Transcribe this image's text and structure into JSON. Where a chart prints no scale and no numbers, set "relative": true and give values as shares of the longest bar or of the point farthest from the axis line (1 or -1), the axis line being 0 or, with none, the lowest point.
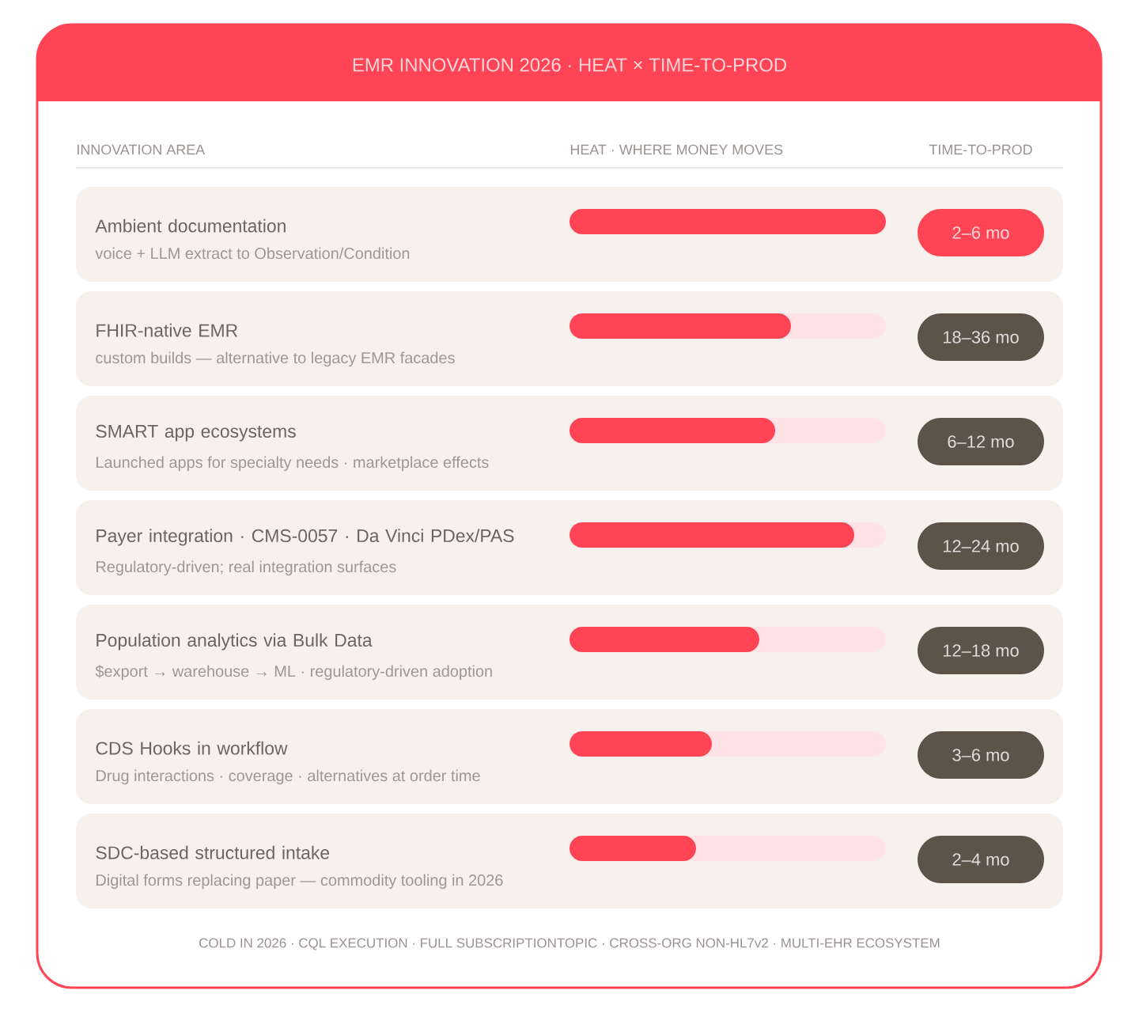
{
  "chart_data": {
    "type": "bar",
    "orientation": "horizontal",
    "relative": true,
    "color": "#ff4455",
    "title": "EMR INNOVATION 2026 · HEAT × TIME-TO-PROD",
    "ylabel": "INNOVATION AREA",
    "xlabel": "HEAT · WHERE MONEY MOVES",
    "categories": [
      "Ambient documentation",
      "FHIR-native EMR",
      "SMART app ecosystems",
      "Payer integration · CMS-0057 · Da Vinci PDex/PAS",
      "Population analytics via Bulk Data",
      "CDS Hooks in workflow",
      "SDC-based structured intake"
    ],
    "values": [
      1,
      0.7,
      0.65,
      0.9,
      0.6,
      0.45,
      0.4
    ],
    "annotations": [
      "TIME-TO-PROD",
      "voice + LLM extract to Observation/Condition",
      "2–6 mo",
      "custom builds — alternative to legacy EMR facades",
      "18–36 mo",
      "Launched apps for specialty needs · marketplace effects",
      "6–12 mo",
      "Regulatory-driven; real integration surfaces",
      "12–24 mo",
      "$export → warehouse → ML · regulatory-driven adoption",
      "12–18 mo",
      "Drug interactions · coverage · alternatives at order time",
      "3–6 mo",
      "Digital forms replacing paper — commodity tooling in 2026",
      "2–4 mo",
      "COLD IN 2026 · CQL EXECUTION · FULL SUBSCRIPTIONTOPIC · CROSS-ORG NON-HL7v2 · MULTI-EHR ECOSYSTEM"
    ]
  }
}
